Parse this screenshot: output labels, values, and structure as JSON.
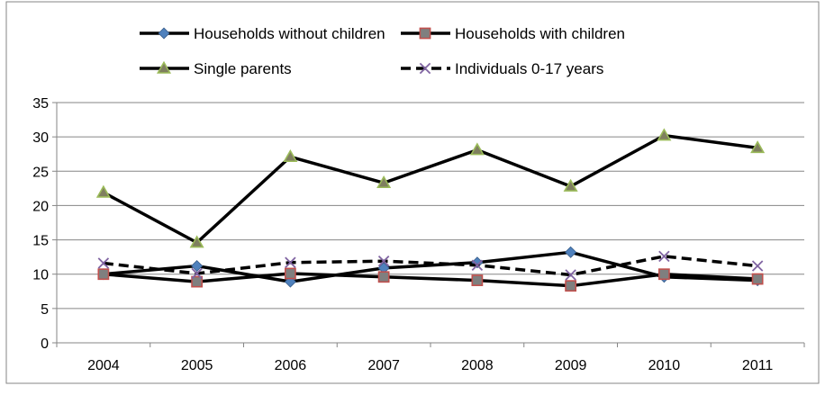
{
  "chart_data": {
    "type": "line",
    "categories": [
      "2004",
      "2005",
      "2006",
      "2007",
      "2008",
      "2009",
      "2010",
      "2011"
    ],
    "ylim": [
      0,
      35
    ],
    "yticks": [
      0,
      5,
      10,
      15,
      20,
      25,
      30,
      35
    ],
    "grid": true,
    "legend_position": "top",
    "series": [
      {
        "name": "Households without children",
        "marker": "diamond",
        "color": "#000000",
        "marker_color": "#4f81bd",
        "dashed": false,
        "values": [
          10.0,
          11.2,
          8.9,
          10.9,
          11.7,
          13.2,
          9.6,
          9.1
        ]
      },
      {
        "name": "Households with children",
        "marker": "square",
        "color": "#000000",
        "marker_color": "#c0504d",
        "dashed": false,
        "values": [
          10.0,
          8.9,
          10.1,
          9.6,
          9.1,
          8.3,
          10.0,
          9.3
        ]
      },
      {
        "name": "Single parents",
        "marker": "triangle",
        "color": "#000000",
        "marker_color": "#9bbb59",
        "dashed": false,
        "values": [
          21.9,
          14.6,
          27.1,
          23.3,
          28.1,
          22.8,
          30.2,
          28.4
        ]
      },
      {
        "name": "Individuals 0-17 years",
        "marker": "x",
        "color": "#000000",
        "marker_color": "#8064a2",
        "dashed": true,
        "values": [
          11.6,
          10.1,
          11.7,
          11.9,
          11.3,
          9.9,
          12.6,
          11.2
        ]
      }
    ]
  }
}
